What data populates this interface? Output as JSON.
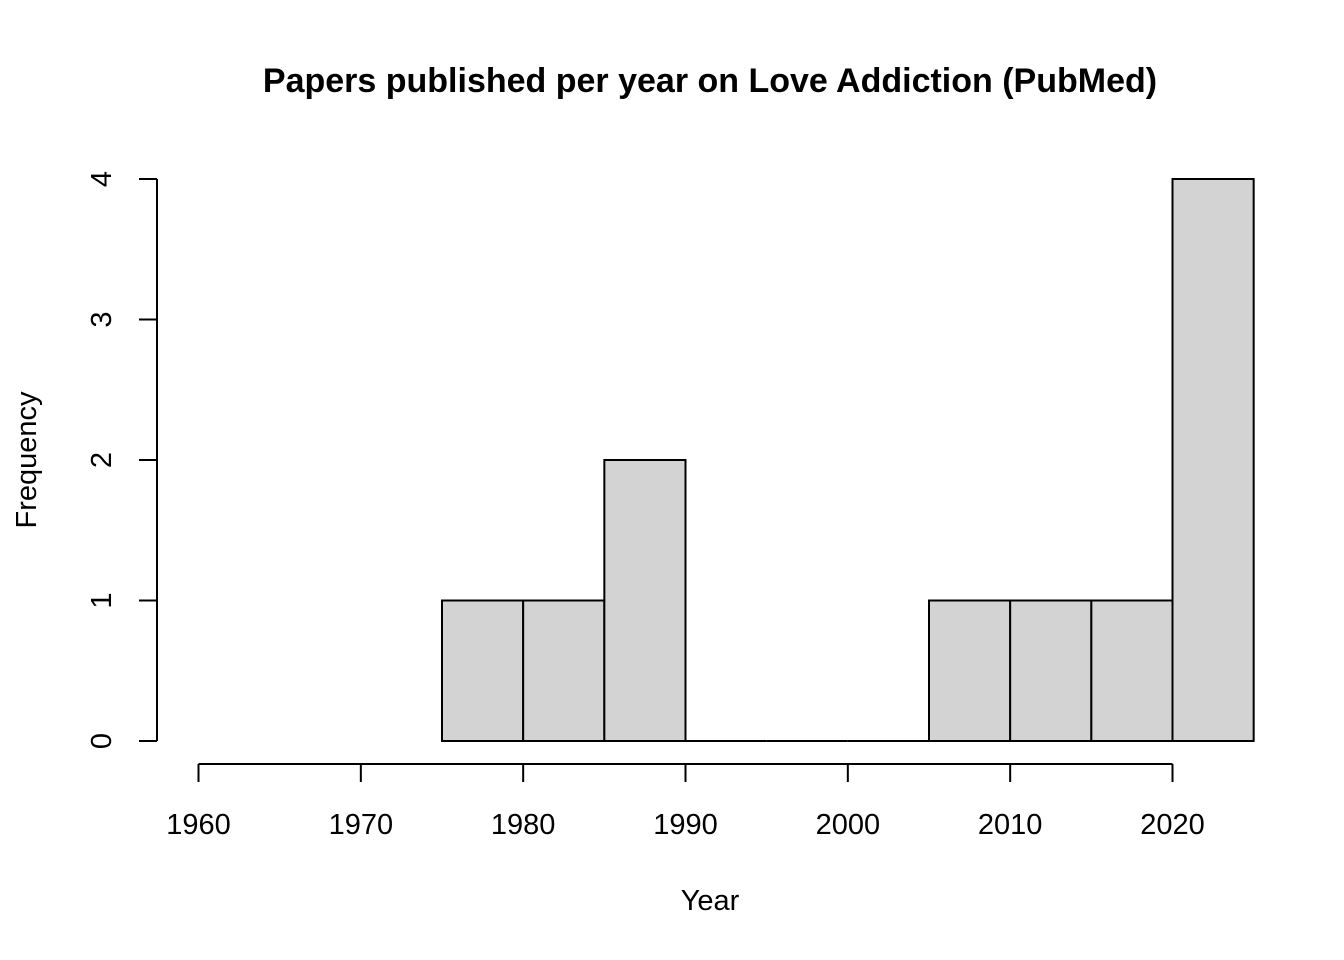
{
  "chart_data": {
    "type": "bar",
    "title": "Papers published per year on Love Addiction (PubMed)",
    "xlabel": "Year",
    "ylabel": "Frequency",
    "bin_width": 5,
    "bins": [
      {
        "start": 1975,
        "end": 1980,
        "count": 1
      },
      {
        "start": 1980,
        "end": 1985,
        "count": 1
      },
      {
        "start": 1985,
        "end": 1990,
        "count": 2
      },
      {
        "start": 1990,
        "end": 1995,
        "count": 0
      },
      {
        "start": 1995,
        "end": 2000,
        "count": 0
      },
      {
        "start": 2000,
        "end": 2005,
        "count": 0
      },
      {
        "start": 2005,
        "end": 2010,
        "count": 1
      },
      {
        "start": 2010,
        "end": 2015,
        "count": 1
      },
      {
        "start": 2015,
        "end": 2020,
        "count": 1
      },
      {
        "start": 2020,
        "end": 2025,
        "count": 4
      }
    ],
    "xticks": [
      "1960",
      "1970",
      "1980",
      "1990",
      "2000",
      "2010",
      "2020"
    ],
    "yticks": [
      "0",
      "1",
      "2",
      "3",
      "4"
    ],
    "xlim": [
      1960,
      2025
    ],
    "ylim": [
      0,
      4
    ],
    "grid": false,
    "colors": {
      "bar_fill": "#d3d3d3",
      "bar_stroke": "#000000"
    }
  }
}
